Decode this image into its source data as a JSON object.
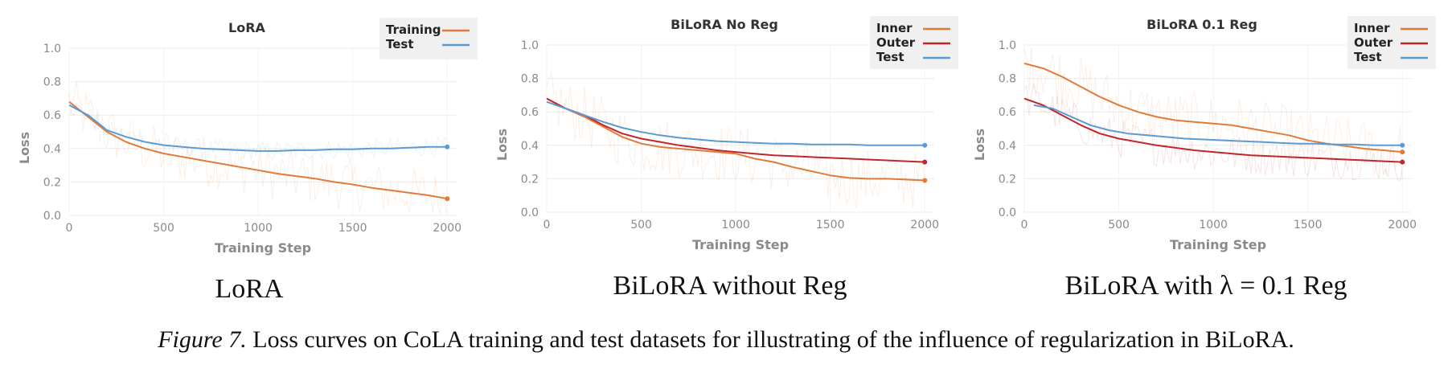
{
  "chart_data": [
    {
      "type": "line",
      "title": "LoRA",
      "xlabel": "Training Step",
      "ylabel": "Loss",
      "xlim": [
        0,
        2050
      ],
      "ylim": [
        0,
        1.0
      ],
      "xticks": [
        "0",
        "500",
        "1000",
        "1500",
        "2000"
      ],
      "yticks": [
        "0.0",
        "0.2",
        "0.4",
        "0.6",
        "0.8",
        "1.0"
      ],
      "grid": true,
      "legend_position": "top-right",
      "series": [
        {
          "name": "Training",
          "color": "#e07b39",
          "x": [
            0,
            100,
            200,
            300,
            400,
            500,
            600,
            700,
            800,
            900,
            1000,
            1100,
            1200,
            1300,
            1400,
            1500,
            1600,
            1700,
            1800,
            1900,
            2000
          ],
          "y": [
            0.68,
            0.59,
            0.5,
            0.44,
            0.4,
            0.37,
            0.35,
            0.33,
            0.31,
            0.29,
            0.27,
            0.25,
            0.235,
            0.22,
            0.2,
            0.185,
            0.165,
            0.15,
            0.135,
            0.12,
            0.1
          ],
          "noise": 0.16
        },
        {
          "name": "Test",
          "color": "#5b9bd5",
          "x": [
            0,
            100,
            200,
            300,
            400,
            500,
            600,
            700,
            800,
            900,
            1000,
            1100,
            1200,
            1300,
            1400,
            1500,
            1600,
            1700,
            1800,
            1900,
            2000
          ],
          "y": [
            0.66,
            0.6,
            0.51,
            0.47,
            0.44,
            0.42,
            0.41,
            0.4,
            0.395,
            0.39,
            0.385,
            0.385,
            0.39,
            0.39,
            0.395,
            0.395,
            0.4,
            0.4,
            0.405,
            0.41,
            0.41
          ],
          "noise": 0.06
        }
      ],
      "subcaption": "LoRA"
    },
    {
      "type": "line",
      "title": "BiLoRA No Reg",
      "xlabel": "Training Step",
      "ylabel": "Loss",
      "xlim": [
        0,
        2050
      ],
      "ylim": [
        0,
        1.0
      ],
      "xticks": [
        "0",
        "500",
        "1000",
        "1500",
        "2000"
      ],
      "yticks": [
        "0.0",
        "0.2",
        "0.4",
        "0.6",
        "0.8",
        "1.0"
      ],
      "grid": true,
      "legend_position": "top-right",
      "series": [
        {
          "name": "Inner",
          "color": "#e07b39",
          "x": [
            0,
            100,
            200,
            300,
            400,
            500,
            600,
            700,
            800,
            900,
            1000,
            1100,
            1200,
            1300,
            1400,
            1500,
            1600,
            1700,
            1800,
            1900,
            2000
          ],
          "y": [
            0.68,
            0.62,
            0.57,
            0.51,
            0.45,
            0.41,
            0.39,
            0.38,
            0.37,
            0.36,
            0.35,
            0.32,
            0.3,
            0.27,
            0.245,
            0.22,
            0.205,
            0.2,
            0.2,
            0.195,
            0.19
          ],
          "noise": 0.18
        },
        {
          "name": "Outer",
          "color": "#c0272d",
          "x": [
            0,
            100,
            200,
            300,
            400,
            500,
            600,
            700,
            800,
            900,
            1000,
            1100,
            1200,
            1300,
            1400,
            1500,
            1600,
            1700,
            1800,
            1900,
            2000
          ],
          "y": [
            0.68,
            0.62,
            0.58,
            0.52,
            0.47,
            0.44,
            0.42,
            0.4,
            0.385,
            0.37,
            0.36,
            0.35,
            0.34,
            0.335,
            0.33,
            0.325,
            0.32,
            0.315,
            0.31,
            0.305,
            0.3
          ],
          "noise": 0.0
        },
        {
          "name": "Test",
          "color": "#5b9bd5",
          "x": [
            0,
            100,
            200,
            300,
            400,
            500,
            600,
            700,
            800,
            900,
            1000,
            1100,
            1200,
            1300,
            1400,
            1500,
            1600,
            1700,
            1800,
            1900,
            2000
          ],
          "y": [
            0.66,
            0.62,
            0.58,
            0.54,
            0.505,
            0.48,
            0.46,
            0.445,
            0.435,
            0.425,
            0.42,
            0.415,
            0.41,
            0.41,
            0.405,
            0.405,
            0.405,
            0.4,
            0.4,
            0.4,
            0.4
          ],
          "noise": 0.0
        }
      ],
      "subcaption": "BiLoRA without Reg"
    },
    {
      "type": "line",
      "title": "BiLoRA 0.1 Reg",
      "xlabel": "Training Step",
      "ylabel": "Loss",
      "xlim": [
        0,
        2050
      ],
      "ylim": [
        0,
        1.0
      ],
      "xticks": [
        "0",
        "500",
        "1000",
        "1500",
        "2000"
      ],
      "yticks": [
        "0.0",
        "0.2",
        "0.4",
        "0.6",
        "0.8",
        "1.0"
      ],
      "grid": true,
      "legend_position": "top-right",
      "series": [
        {
          "name": "Inner",
          "color": "#e07b39",
          "x": [
            0,
            100,
            200,
            300,
            400,
            500,
            600,
            700,
            800,
            900,
            1000,
            1100,
            1200,
            1300,
            1400,
            1500,
            1600,
            1700,
            1800,
            1900,
            2000
          ],
          "y": [
            0.89,
            0.86,
            0.81,
            0.75,
            0.69,
            0.64,
            0.6,
            0.57,
            0.55,
            0.54,
            0.53,
            0.52,
            0.5,
            0.48,
            0.46,
            0.43,
            0.41,
            0.395,
            0.38,
            0.37,
            0.36
          ],
          "noise": 0.18
        },
        {
          "name": "Outer",
          "color": "#c0272d",
          "x": [
            0,
            100,
            200,
            300,
            400,
            500,
            600,
            700,
            800,
            900,
            1000,
            1100,
            1200,
            1300,
            1400,
            1500,
            1600,
            1700,
            1800,
            1900,
            2000
          ],
          "y": [
            0.68,
            0.64,
            0.58,
            0.52,
            0.47,
            0.44,
            0.42,
            0.4,
            0.385,
            0.37,
            0.36,
            0.35,
            0.34,
            0.335,
            0.33,
            0.325,
            0.32,
            0.315,
            0.31,
            0.305,
            0.3
          ],
          "noise": 0.12
        },
        {
          "name": "Test",
          "color": "#5b9bd5",
          "x": [
            50,
            150,
            250,
            350,
            450,
            550,
            650,
            750,
            850,
            950,
            1050,
            1150,
            1250,
            1350,
            1450,
            1550,
            1650,
            1750,
            1850,
            1950,
            2000
          ],
          "y": [
            0.64,
            0.62,
            0.57,
            0.52,
            0.49,
            0.47,
            0.46,
            0.45,
            0.44,
            0.435,
            0.43,
            0.425,
            0.42,
            0.415,
            0.41,
            0.41,
            0.405,
            0.405,
            0.4,
            0.4,
            0.4
          ],
          "noise": 0.0
        }
      ],
      "subcaption": "BiLoRA with λ = 0.1 Reg"
    }
  ],
  "caption": {
    "label": "Figure 7.",
    "text": " Loss curves on CoLA training and test datasets for illustrating of the influence of regularization in BiLoRA."
  }
}
